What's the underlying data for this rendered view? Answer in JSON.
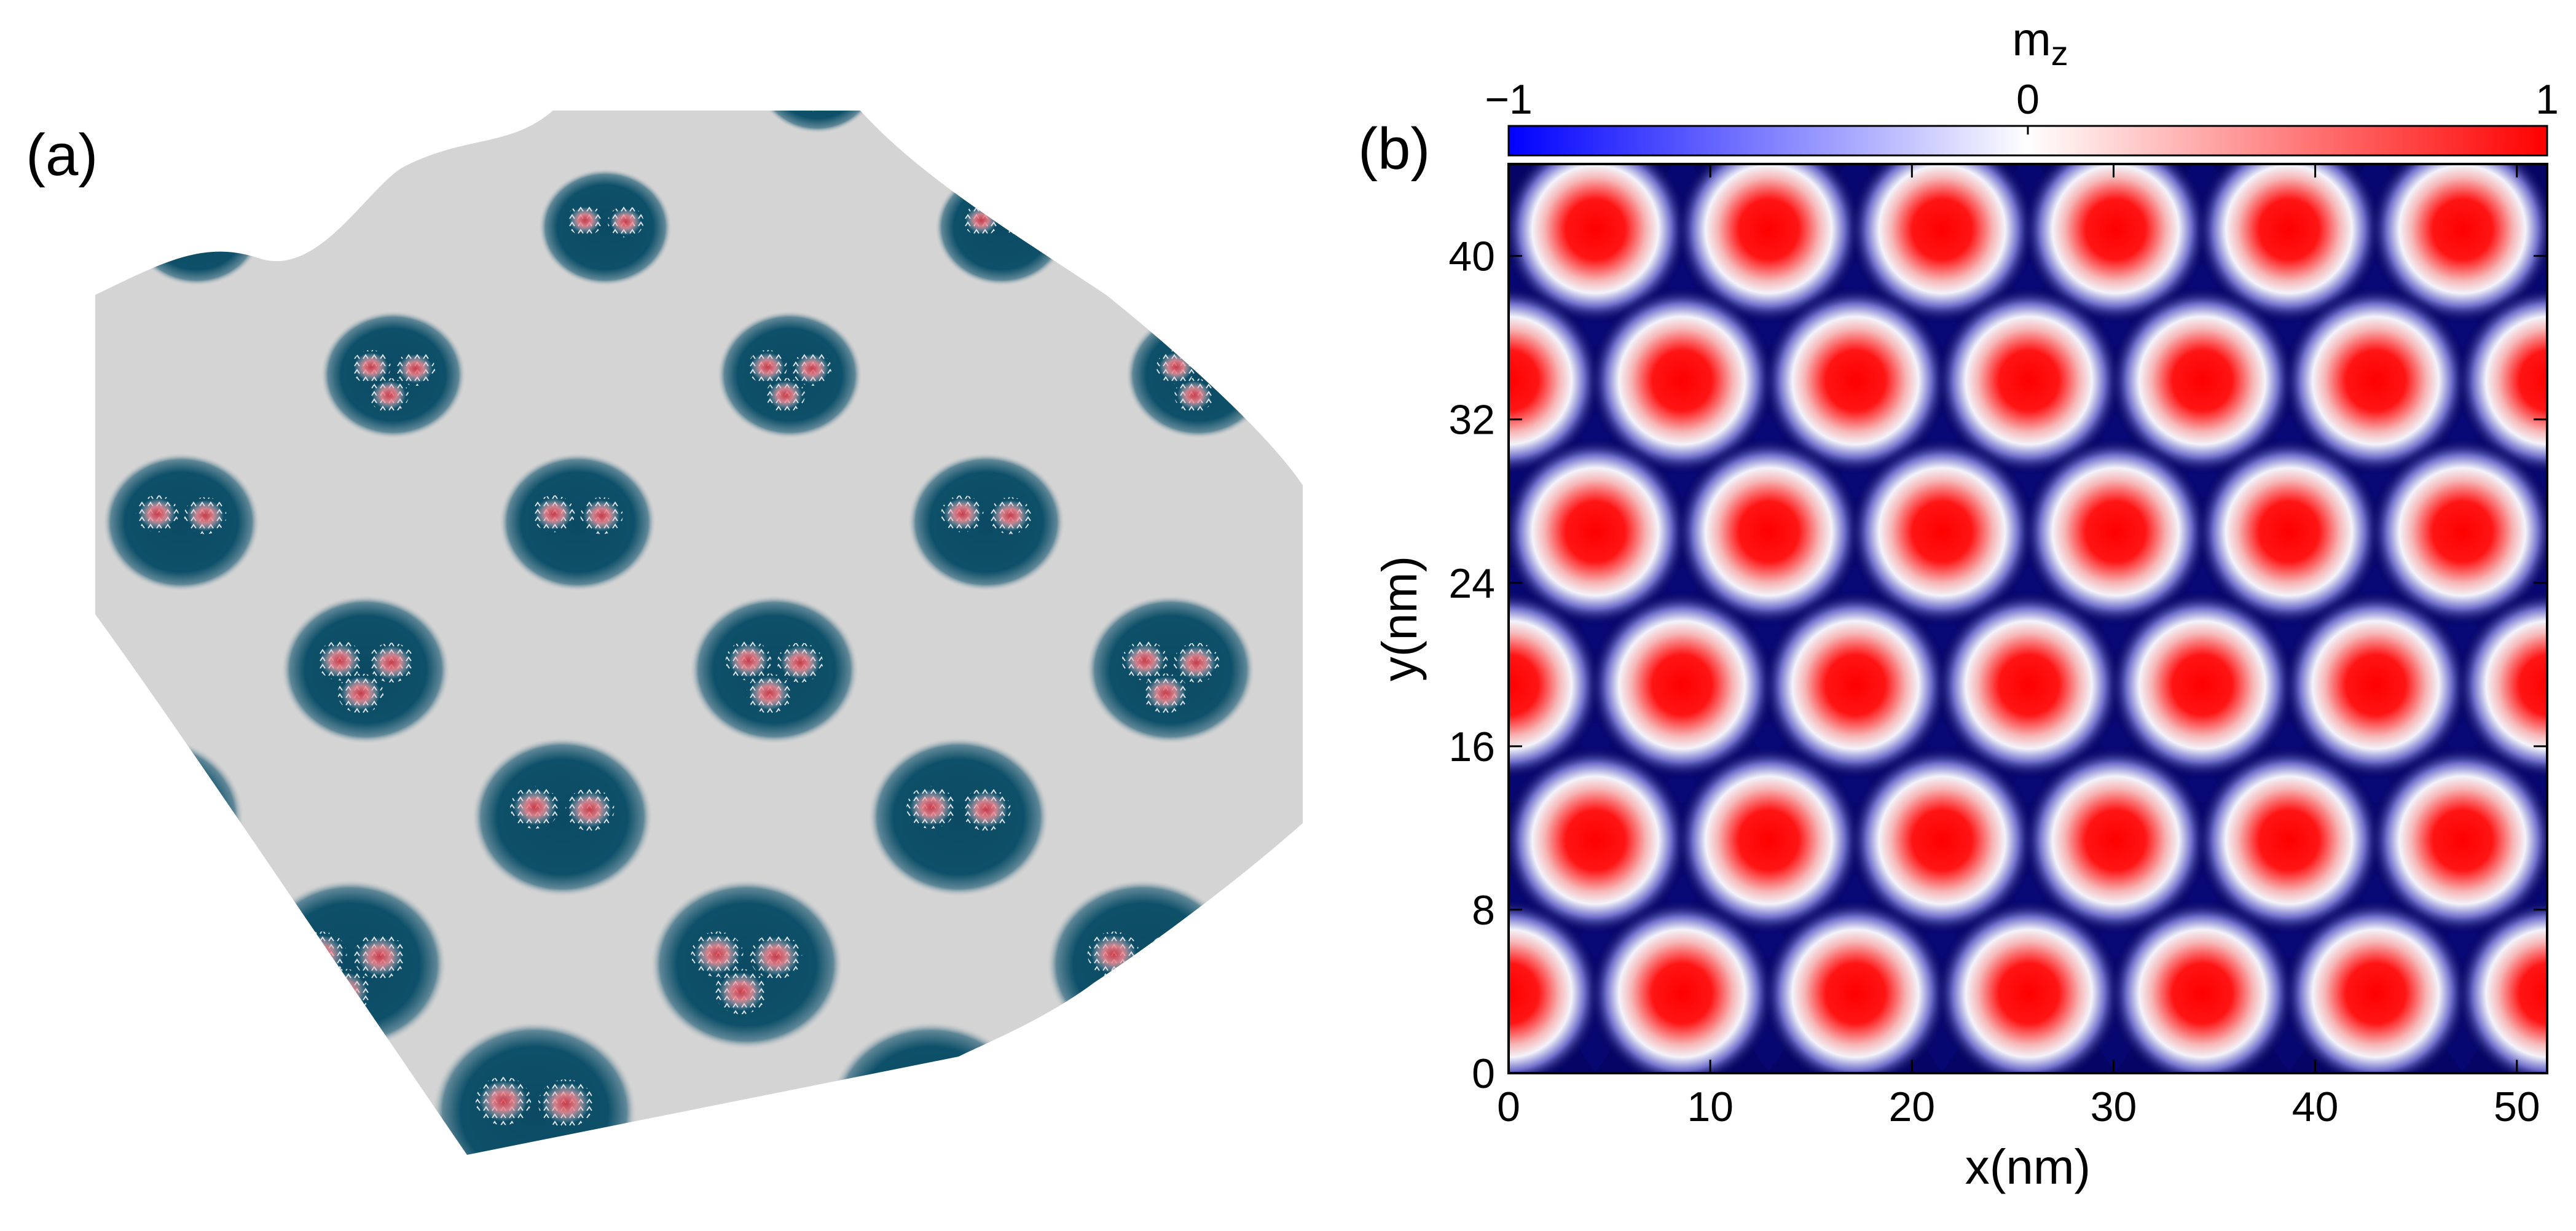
{
  "panel_a": {
    "label": "(a)",
    "surface_color": "#0d4d66",
    "ridge_color": "#d9d9d9",
    "core_color": "#e63946",
    "arrow_color": "#e8edf3"
  },
  "chart_data": {
    "type": "heatmap",
    "panel_label": "(b)",
    "quantity": "m",
    "quantity_subscript": "z",
    "xlabel": "x(nm)",
    "ylabel": "y(nm)",
    "xlim": [
      0,
      51.5
    ],
    "ylim": [
      0,
      44.5
    ],
    "xticks": [
      0,
      10,
      20,
      30,
      40,
      50
    ],
    "yticks": [
      0,
      8,
      16,
      24,
      32,
      40
    ],
    "colorbar": {
      "range": [
        -1,
        1
      ],
      "ticks": [
        "−1",
        "0",
        "1"
      ],
      "colors": [
        "#0000ff",
        "#ffffff",
        "#ff0000"
      ]
    },
    "background_value": -0.92,
    "skyrmion_core_value": 1.0,
    "skyrmion_centers": [
      {
        "x": 4.3,
        "y": 41.3
      },
      {
        "x": 12.9,
        "y": 41.3
      },
      {
        "x": 21.5,
        "y": 41.3
      },
      {
        "x": 30.1,
        "y": 41.3
      },
      {
        "x": 38.7,
        "y": 41.3
      },
      {
        "x": 47.3,
        "y": 41.3
      },
      {
        "x": 0.0,
        "y": 33.9
      },
      {
        "x": 8.6,
        "y": 33.9
      },
      {
        "x": 17.2,
        "y": 33.9
      },
      {
        "x": 25.8,
        "y": 33.9
      },
      {
        "x": 34.4,
        "y": 33.9
      },
      {
        "x": 43.0,
        "y": 33.9
      },
      {
        "x": 51.6,
        "y": 33.9
      },
      {
        "x": 4.3,
        "y": 26.5
      },
      {
        "x": 12.9,
        "y": 26.5
      },
      {
        "x": 21.5,
        "y": 26.5
      },
      {
        "x": 30.1,
        "y": 26.5
      },
      {
        "x": 38.7,
        "y": 26.5
      },
      {
        "x": 47.3,
        "y": 26.5
      },
      {
        "x": 0.0,
        "y": 19.0
      },
      {
        "x": 8.6,
        "y": 19.0
      },
      {
        "x": 17.2,
        "y": 19.0
      },
      {
        "x": 25.8,
        "y": 19.0
      },
      {
        "x": 34.4,
        "y": 19.0
      },
      {
        "x": 43.0,
        "y": 19.0
      },
      {
        "x": 51.6,
        "y": 19.0
      },
      {
        "x": 4.3,
        "y": 11.4
      },
      {
        "x": 12.9,
        "y": 11.4
      },
      {
        "x": 21.5,
        "y": 11.4
      },
      {
        "x": 30.1,
        "y": 11.4
      },
      {
        "x": 38.7,
        "y": 11.4
      },
      {
        "x": 47.3,
        "y": 11.4
      },
      {
        "x": 0.0,
        "y": 3.9
      },
      {
        "x": 8.6,
        "y": 3.9
      },
      {
        "x": 17.2,
        "y": 3.9
      },
      {
        "x": 25.8,
        "y": 3.9
      },
      {
        "x": 34.4,
        "y": 3.9
      },
      {
        "x": 43.0,
        "y": 3.9
      },
      {
        "x": 51.6,
        "y": 3.9
      }
    ]
  }
}
